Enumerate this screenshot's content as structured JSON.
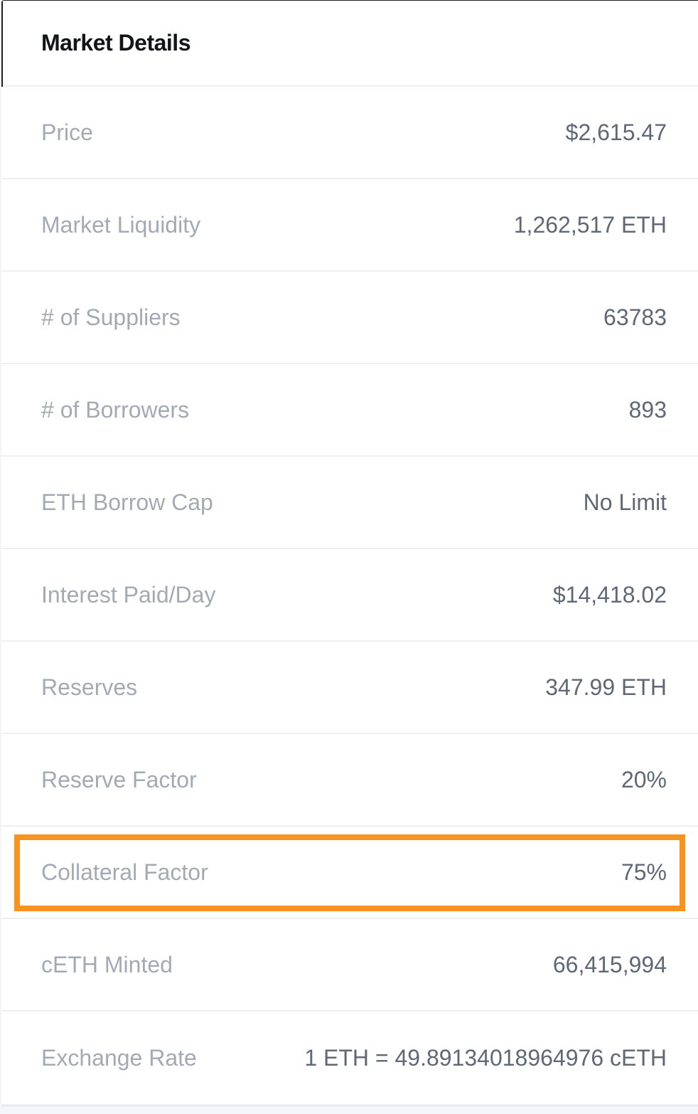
{
  "panel": {
    "title": "Market Details"
  },
  "rows": [
    {
      "label": "Price",
      "value": "$2,615.47"
    },
    {
      "label": "Market Liquidity",
      "value": "1,262,517 ETH"
    },
    {
      "label": "# of Suppliers",
      "value": "63783"
    },
    {
      "label": "# of Borrowers",
      "value": "893"
    },
    {
      "label": "ETH Borrow Cap",
      "value": "No Limit"
    },
    {
      "label": "Interest Paid/Day",
      "value": "$14,418.02"
    },
    {
      "label": "Reserves",
      "value": "347.99 ETH"
    },
    {
      "label": "Reserve Factor",
      "value": "20%"
    },
    {
      "label": "Collateral Factor",
      "value": "75%"
    },
    {
      "label": "cETH Minted",
      "value": "66,415,994"
    },
    {
      "label": "Exchange Rate",
      "value": "1 ETH = 49.89134018964976 cETH"
    }
  ],
  "colors": {
    "title": "#111418",
    "label": "#a3aab4",
    "value": "#5f6874",
    "divider": "#edeff2",
    "highlight": "#f7931e"
  }
}
